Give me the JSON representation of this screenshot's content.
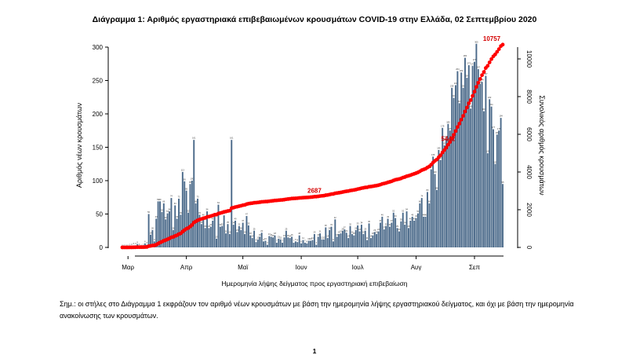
{
  "page": {
    "footnote": "Σημ.: οι στήλες στο Διάγραμμα 1 εκφράζουν τον αριθμό νέων κρουσμάτων με βάση την ημερομηνία λήψης εργαστηριακού δείγματος, και όχι με βάση την ημερομηνία ανακοίνωσης των κρουσμάτων.",
    "page_number": "1"
  },
  "chart_data": {
    "type": "bar",
    "title": "Διάγραμμα 1: Αριθμός εργαστηριακά επιβεβαιωμένων κρουσμάτων COVID-19 στην Ελλάδα, 02 Σεπτεμβρίου 2020",
    "xlabel": "Ημερομηνία λήψης δείγματος προς εργαστηριακή επιβεβαίωση",
    "ylabel": "Αριθμός νέων κρουσμάτων",
    "y2label": "Συνολικός αριθμός κρουσμάτων",
    "ylim": [
      0,
      320
    ],
    "y2lim": [
      0,
      11000
    ],
    "yticks": [
      0,
      50,
      100,
      150,
      200,
      250,
      300
    ],
    "y2ticks": [
      0,
      2000,
      4000,
      6000,
      8000,
      10000
    ],
    "x_tick_labels": [
      "Μαρ",
      "Απρ",
      "Μαϊ",
      "Ιουν",
      "Ιουλ",
      "Αυγ",
      "Σεπ"
    ],
    "colors": {
      "bars": "#4b6a8a",
      "cumulative": "#ff0000",
      "annotation": "#d40000"
    },
    "cumulative_annotations": [
      {
        "label": "2687",
        "value": 2687
      },
      {
        "label": "5442",
        "value": 5442
      },
      {
        "label": "10757",
        "value": 10757
      }
    ],
    "daily_new_cases": [
      0,
      0,
      0,
      0,
      1,
      2,
      3,
      3,
      5,
      2,
      0,
      1,
      6,
      4,
      50,
      19,
      26,
      9,
      43,
      69,
      69,
      53,
      66,
      42,
      51,
      54,
      74,
      26,
      63,
      43,
      73,
      49,
      113,
      99,
      85,
      52,
      95,
      100,
      161,
      66,
      73,
      49,
      35,
      46,
      29,
      54,
      29,
      31,
      40,
      47,
      13,
      64,
      31,
      32,
      48,
      21,
      35,
      20,
      161,
      34,
      40,
      23,
      32,
      26,
      37,
      20,
      47,
      33,
      18,
      14,
      25,
      8,
      12,
      16,
      22,
      9,
      10,
      4,
      17,
      16,
      15,
      18,
      7,
      13,
      12,
      7,
      15,
      25,
      15,
      14,
      16,
      7,
      9,
      8,
      18,
      6,
      11,
      7,
      6,
      10,
      10,
      11,
      20,
      4,
      16,
      21,
      12,
      12,
      30,
      14,
      26,
      31,
      9,
      42,
      16,
      20,
      21,
      25,
      27,
      22,
      14,
      32,
      20,
      18,
      26,
      33,
      24,
      34,
      20,
      25,
      11,
      36,
      14,
      18,
      23,
      20,
      24,
      37,
      46,
      27,
      32,
      43,
      31,
      37,
      52,
      44,
      29,
      24,
      39,
      52,
      34,
      54,
      29,
      40,
      46,
      40,
      44,
      51,
      66,
      74,
      46,
      46,
      83,
      66,
      117,
      136,
      110,
      86,
      146,
      131,
      179,
      153,
      163,
      185,
      175,
      239,
      224,
      243,
      264,
      216,
      262,
      239,
      284,
      254,
      273,
      208,
      272,
      278,
      305,
      267,
      245,
      248,
      204,
      257,
      141,
      222,
      211,
      177,
      125,
      169,
      175,
      194,
      95
    ]
  }
}
